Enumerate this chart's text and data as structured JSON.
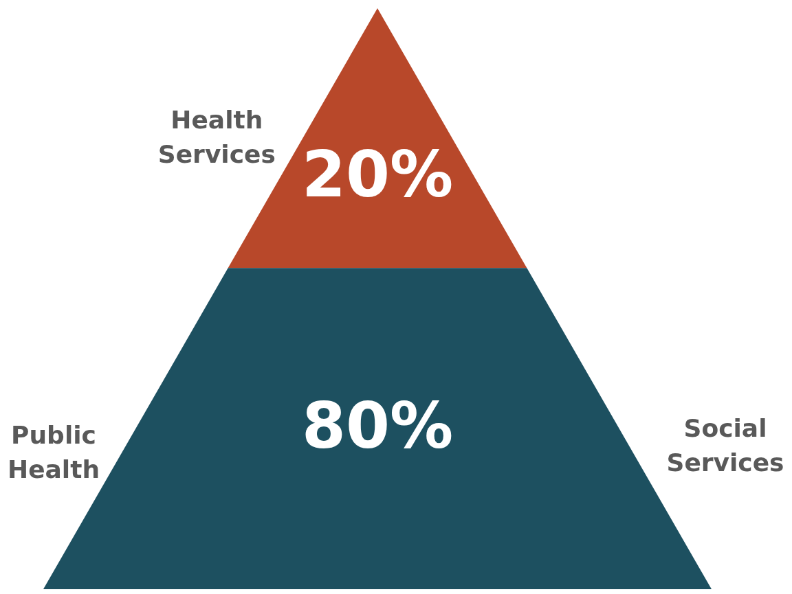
{
  "chart_data": {
    "type": "other",
    "categories": [
      "Health Services",
      null
    ],
    "values": [
      20,
      80
    ],
    "value_labels": [
      "20%",
      "80%"
    ],
    "colors": [
      "#b8482a",
      "#1d5060"
    ],
    "annotations": [
      "Public Health",
      "Social Services"
    ]
  }
}
